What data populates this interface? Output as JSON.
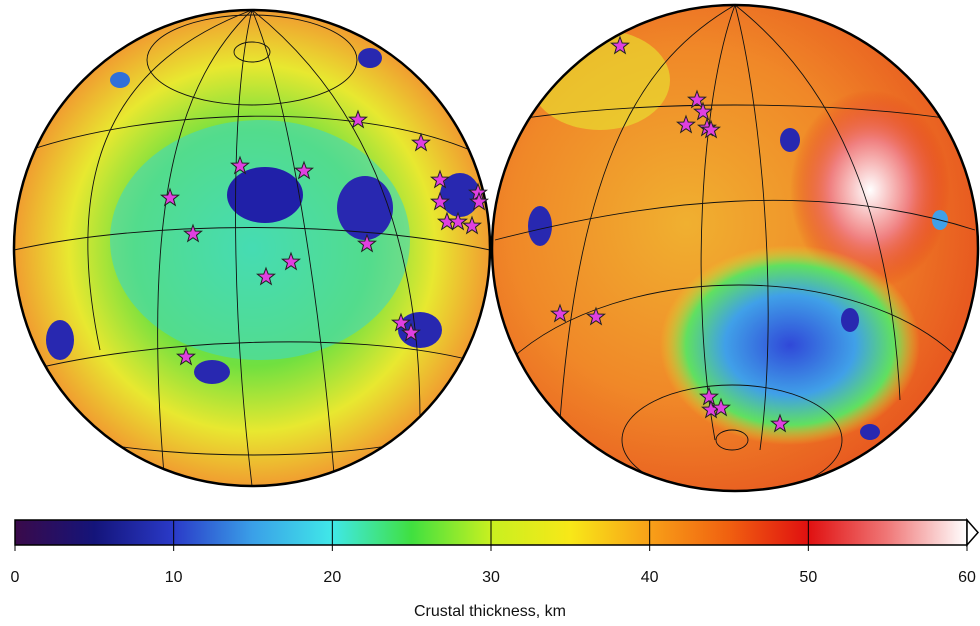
{
  "colorbar": {
    "label": "Crustal thickness, km",
    "lim": [
      0,
      60
    ],
    "ticks": [
      0,
      10,
      20,
      30,
      40,
      50,
      60
    ],
    "colors": [
      "#3a0a4a",
      "#14147a",
      "#2a3ac8",
      "#3aa0e8",
      "#40e8e8",
      "#40e040",
      "#c8f020",
      "#f8e818",
      "#f8a018",
      "#f06010",
      "#e01010",
      "#f07878",
      "#ffffff"
    ]
  }
}
